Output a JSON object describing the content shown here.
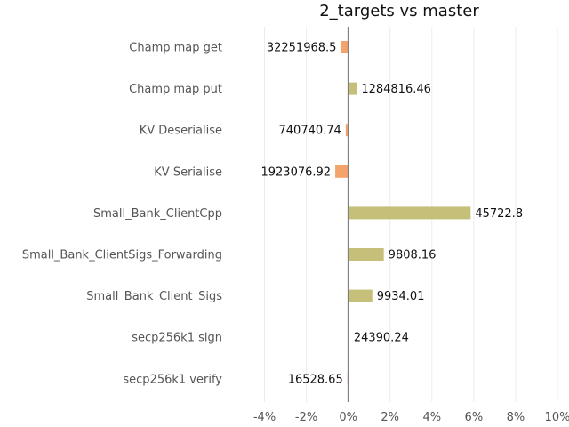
{
  "chart_data": {
    "type": "bar",
    "orientation": "horizontal",
    "title": "2_targets vs master",
    "xlim": [
      -0.05,
      0.1
    ],
    "xticks": [
      -0.04,
      -0.02,
      0.0,
      0.02,
      0.04,
      0.06,
      0.08,
      0.1
    ],
    "xtick_labels": [
      "-4%",
      "-2%",
      "0%",
      "2%",
      "4%",
      "6%",
      "8%",
      "10%"
    ],
    "grid": true,
    "negative_color": "#f4a46b",
    "positive_color": "#c5bf7a",
    "categories": [
      "Champ map get",
      "Champ map put",
      "KV Deserialise",
      "KV Serialise",
      "Small_Bank_ClientCpp",
      "Small_Bank_ClientSigs_Forwarding",
      "Small_Bank_Client_Sigs",
      "secp256k1 sign",
      "secp256k1 verify"
    ],
    "values": [
      -0.0035,
      0.0041,
      -0.0012,
      -0.0062,
      0.0585,
      0.017,
      0.0115,
      0.0005,
      -0.0004
    ],
    "data_labels": [
      "32251968.5",
      "1284816.46",
      "740740.74",
      "1923076.92",
      "45722.8",
      "9808.16",
      "9934.01",
      "24390.24",
      "16528.65"
    ]
  }
}
